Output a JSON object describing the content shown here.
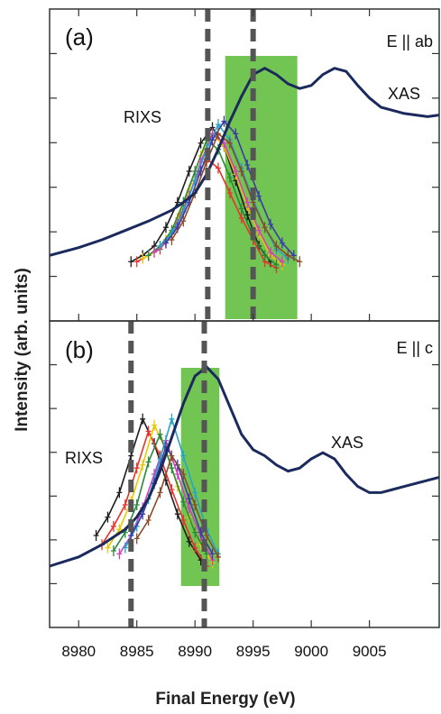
{
  "chart_data": {
    "type": "line",
    "xlabel": "Final Energy (eV)",
    "ylabel": "Intensity (arb. units)",
    "xlim": [
      8977.5,
      9011
    ],
    "xticks": [
      8980,
      8985,
      8990,
      8995,
      9000,
      9005
    ],
    "xtick_labels": [
      "8980",
      "8985",
      "8990",
      "8995",
      "9000",
      "9005"
    ],
    "grid": false,
    "legend": "none",
    "colors": {
      "xas": "#1a2a5c",
      "shaded_region": "#6cc24a",
      "dashed_line": "#555555",
      "rixs": [
        "#1c1c1c",
        "#e8322a",
        "#e8c800",
        "#2a8a3a",
        "#d040c0",
        "#25a6c6",
        "#3a3aa8",
        "#8a4a2a"
      ]
    },
    "panels": [
      {
        "label": "(a)",
        "polarization": "E || ab",
        "ylim": [
          0,
          1
        ],
        "shaded_x": [
          8992.6,
          8998.8
        ],
        "dashed_x": [
          8991.1,
          8995.0
        ],
        "annotations": {
          "rixs": "RIXS",
          "xas": "XAS"
        },
        "series": [
          {
            "name": "XAS",
            "x": [
              8977.5,
              8980,
              8982,
              8984,
              8986,
              8988,
              8989,
              8990,
              8991,
              8992,
              8993,
              8994,
              8995,
              8996,
              8997,
              8998,
              8999,
              9000,
              9001,
              9002,
              9003,
              9004,
              9005,
              9006,
              9007,
              9008,
              9009,
              9010,
              9011
            ],
            "y": [
              0.21,
              0.235,
              0.26,
              0.29,
              0.32,
              0.355,
              0.38,
              0.41,
              0.47,
              0.55,
              0.64,
              0.72,
              0.79,
              0.81,
              0.79,
              0.76,
              0.745,
              0.755,
              0.79,
              0.81,
              0.8,
              0.755,
              0.715,
              0.685,
              0.675,
              0.665,
              0.66,
              0.655,
              0.66
            ]
          }
        ],
        "rixs_scans": [
          {
            "x": [
              8984.5,
              8985.5,
              8986.5,
              8987.5,
              8988.5,
              8989.5,
              8990.5,
              8991.5,
              8992.5,
              8993.5,
              8994.5,
              8995.5,
              8996.5
            ],
            "y": [
              0.19,
              0.21,
              0.24,
              0.3,
              0.38,
              0.48,
              0.57,
              0.62,
              0.56,
              0.45,
              0.34,
              0.24,
              0.19
            ]
          },
          {
            "x": [
              8985.0,
              8986.0,
              8987.0,
              8988.0,
              8989.0,
              8990.0,
              8991.0,
              8992.0,
              8993.0,
              8994.0,
              8995.0,
              8996.0,
              8997.0
            ],
            "y": [
              0.19,
              0.21,
              0.23,
              0.28,
              0.36,
              0.45,
              0.52,
              0.49,
              0.41,
              0.33,
              0.26,
              0.19,
              0.17
            ]
          },
          {
            "x": [
              8985.5,
              8986.5,
              8987.5,
              8988.5,
              8989.5,
              8990.5,
              8991.5,
              8992.5,
              8993.5,
              8994.5,
              8995.5,
              8996.5,
              8997.5
            ],
            "y": [
              0.2,
              0.22,
              0.26,
              0.33,
              0.42,
              0.53,
              0.6,
              0.56,
              0.47,
              0.37,
              0.28,
              0.21,
              0.18
            ]
          },
          {
            "x": [
              8986.0,
              8987.0,
              8988.0,
              8989.0,
              8990.0,
              8991.0,
              8992.0,
              8993.0,
              8994.0,
              8995.0,
              8996.0,
              8997.0
            ],
            "y": [
              0.21,
              0.24,
              0.29,
              0.38,
              0.48,
              0.58,
              0.55,
              0.46,
              0.36,
              0.27,
              0.21,
              0.18
            ]
          },
          {
            "x": [
              8986.5,
              8987.5,
              8988.5,
              8989.5,
              8990.5,
              8991.5,
              8992.5,
              8993.5,
              8994.5,
              8995.5,
              8996.5,
              8997.5
            ],
            "y": [
              0.22,
              0.25,
              0.31,
              0.4,
              0.51,
              0.6,
              0.57,
              0.48,
              0.38,
              0.29,
              0.22,
              0.19
            ]
          },
          {
            "x": [
              8987.0,
              8988.0,
              8989.0,
              8990.0,
              8991.0,
              8992.0,
              8993.0,
              8994.0,
              8995.0,
              8996.0,
              8997.0,
              8998.0
            ],
            "y": [
              0.24,
              0.28,
              0.35,
              0.45,
              0.55,
              0.63,
              0.58,
              0.49,
              0.39,
              0.3,
              0.23,
              0.2
            ]
          },
          {
            "x": [
              8987.5,
              8988.5,
              8989.5,
              8990.5,
              8991.5,
              8992.5,
              8993.5,
              8994.5,
              8995.5,
              8996.5,
              8997.5,
              8998.5
            ],
            "y": [
              0.25,
              0.3,
              0.38,
              0.48,
              0.58,
              0.64,
              0.6,
              0.5,
              0.4,
              0.31,
              0.25,
              0.21
            ]
          },
          {
            "x": [
              8988.0,
              8989.0,
              8990.0,
              8991.0,
              8992.0,
              8993.0,
              8994.0,
              8995.0,
              8996.0,
              8997.0,
              8998.0,
              8999.0
            ],
            "y": [
              0.26,
              0.32,
              0.41,
              0.51,
              0.6,
              0.57,
              0.48,
              0.38,
              0.3,
              0.24,
              0.21,
              0.19
            ]
          }
        ]
      },
      {
        "label": "(b)",
        "polarization": "E || c",
        "ylim": [
          0,
          1
        ],
        "shaded_x": [
          8988.8,
          8992.1
        ],
        "dashed_x": [
          8984.5,
          8990.8
        ],
        "annotations": {
          "rixs": "RIXS",
          "xas": "XAS"
        },
        "series": [
          {
            "name": "XAS",
            "x": [
              8977.5,
              8980,
              8982,
              8984,
              8985,
              8986,
              8987,
              8988,
              8989,
              8990,
              8991,
              8992,
              8993,
              8994,
              8995,
              8996,
              8997,
              8998,
              8999,
              9000,
              9001,
              9002,
              9003,
              9004,
              9005,
              9006,
              9007,
              9008,
              9009,
              9010,
              9011
            ],
            "y": [
              0.2,
              0.23,
              0.27,
              0.32,
              0.36,
              0.42,
              0.51,
              0.62,
              0.73,
              0.82,
              0.85,
              0.81,
              0.72,
              0.63,
              0.58,
              0.56,
              0.53,
              0.51,
              0.52,
              0.55,
              0.57,
              0.55,
              0.5,
              0.46,
              0.44,
              0.44,
              0.45,
              0.46,
              0.47,
              0.48,
              0.49
            ]
          }
        ],
        "rixs_scans": [
          {
            "x": [
              8981.5,
              8982.5,
              8983.5,
              8984.5,
              8985.5,
              8986.5,
              8987.5,
              8988.5,
              8989.5,
              8990.5
            ],
            "y": [
              0.3,
              0.36,
              0.44,
              0.56,
              0.68,
              0.6,
              0.48,
              0.37,
              0.28,
              0.22
            ]
          },
          {
            "x": [
              8982.0,
              8983.0,
              8984.0,
              8985.0,
              8986.0,
              8987.0,
              8988.0,
              8989.0,
              8990.0,
              8991.0
            ],
            "y": [
              0.27,
              0.33,
              0.4,
              0.52,
              0.64,
              0.56,
              0.45,
              0.35,
              0.26,
              0.2
            ]
          },
          {
            "x": [
              8982.5,
              8983.5,
              8984.5,
              8985.5,
              8986.5,
              8987.5,
              8988.5,
              8989.5,
              8990.5,
              8991.5
            ],
            "y": [
              0.26,
              0.32,
              0.41,
              0.53,
              0.66,
              0.58,
              0.46,
              0.36,
              0.27,
              0.21
            ]
          },
          {
            "x": [
              8983.0,
              8984.0,
              8985.0,
              8986.0,
              8987.0,
              8988.0,
              8989.0,
              8990.0,
              8991.0
            ],
            "y": [
              0.25,
              0.31,
              0.4,
              0.54,
              0.63,
              0.52,
              0.41,
              0.31,
              0.24
            ]
          },
          {
            "x": [
              8983.5,
              8984.5,
              8985.5,
              8986.5,
              8987.5,
              8988.5,
              8989.5,
              8990.5,
              8991.5
            ],
            "y": [
              0.24,
              0.3,
              0.39,
              0.5,
              0.61,
              0.5,
              0.39,
              0.3,
              0.22
            ]
          },
          {
            "x": [
              8984.0,
              8985.0,
              8986.0,
              8987.0,
              8988.0,
              8989.0,
              8990.0,
              8991.0,
              8992.0
            ],
            "y": [
              0.26,
              0.33,
              0.42,
              0.55,
              0.68,
              0.56,
              0.44,
              0.32,
              0.24
            ]
          },
          {
            "x": [
              8984.5,
              8985.5,
              8986.5,
              8987.5,
              8988.5,
              8989.5,
              8990.5,
              8991.5
            ],
            "y": [
              0.3,
              0.37,
              0.47,
              0.59,
              0.53,
              0.42,
              0.31,
              0.24
            ]
          },
          {
            "x": [
              8985.0,
              8986.0,
              8987.0,
              8988.0,
              8989.0,
              8990.0,
              8991.0,
              8992.0
            ],
            "y": [
              0.29,
              0.35,
              0.44,
              0.56,
              0.5,
              0.4,
              0.3,
              0.23
            ]
          }
        ]
      }
    ]
  }
}
